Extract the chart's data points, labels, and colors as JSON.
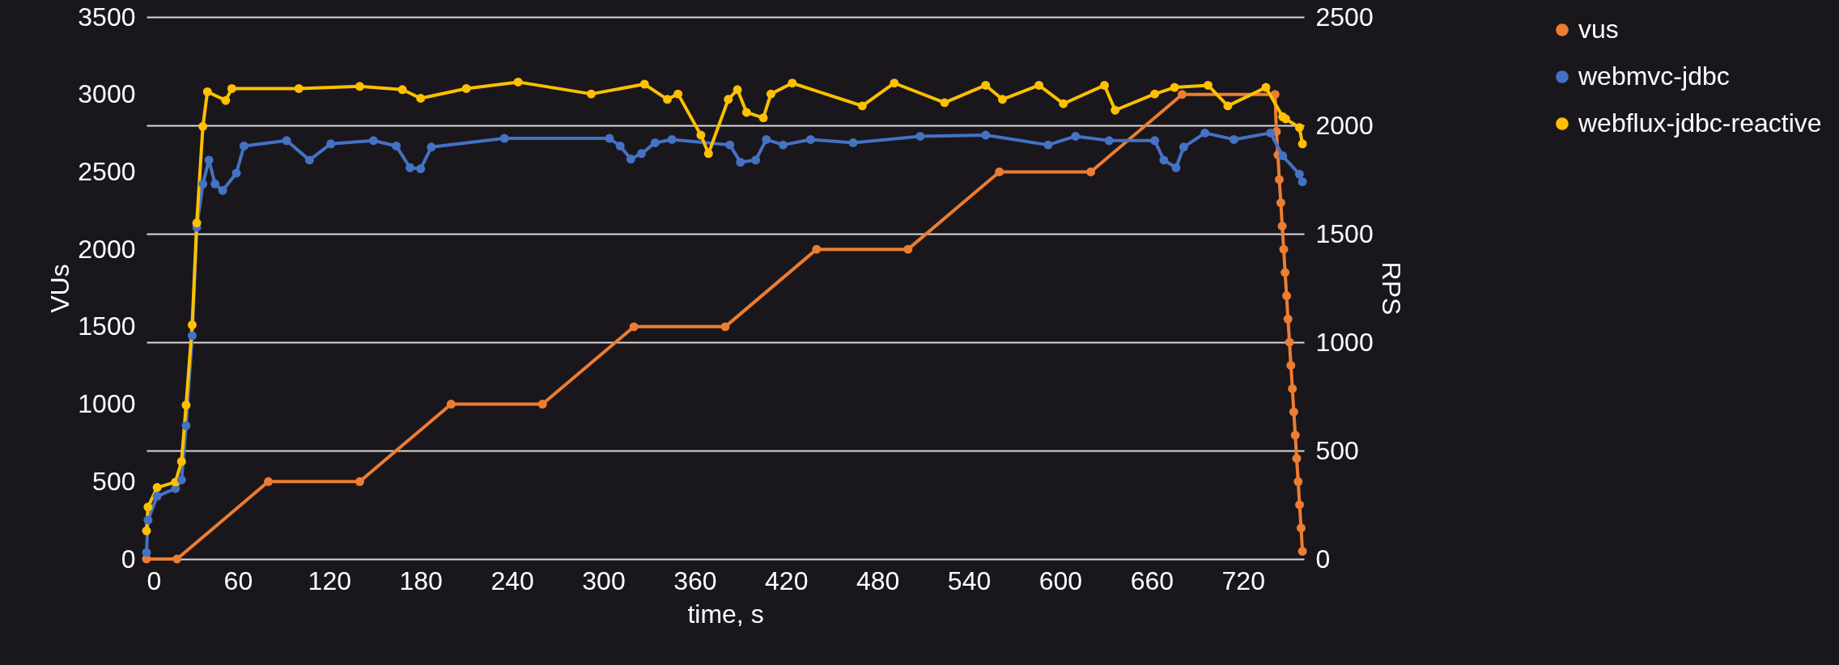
{
  "chart_data": {
    "type": "line",
    "xlabel": "time, s",
    "ylabel": "VUs",
    "y2label": "RPS",
    "xlim": [
      0,
      760
    ],
    "xticks": [
      0,
      60,
      120,
      180,
      240,
      300,
      360,
      420,
      480,
      540,
      600,
      660,
      720
    ],
    "ylim": [
      0,
      3500
    ],
    "yticks": [
      0,
      500,
      1000,
      1500,
      2000,
      2500,
      3000,
      3500
    ],
    "y2lim": [
      0,
      2500
    ],
    "y2ticks": [
      0,
      500,
      1000,
      1500,
      2000,
      2500
    ],
    "grid": "y2",
    "legend": "right",
    "marker": "circle",
    "series": [
      {
        "name": "vus",
        "color": "#ed7d31",
        "axis": "y",
        "x": [
          0,
          20,
          80,
          140,
          200,
          260,
          320,
          380,
          440,
          500,
          560,
          620,
          680,
          741,
          741.9,
          742.9,
          743.8,
          744.8,
          745.7,
          746.7,
          747.6,
          748.6,
          749.5,
          750.5,
          751.4,
          752.4,
          753.3,
          754.3,
          755.2,
          756.2,
          757.1,
          758.1,
          759
        ],
        "values": [
          0,
          0,
          500,
          500,
          1000,
          1000,
          1500,
          1500,
          2000,
          2000,
          2500,
          2500,
          3000,
          3000,
          2760,
          2610,
          2450,
          2300,
          2150,
          2000,
          1850,
          1700,
          1550,
          1400,
          1250,
          1100,
          950,
          800,
          650,
          500,
          350,
          200,
          50
        ]
      },
      {
        "name": "webmvc-jdbc",
        "color": "#4472c4",
        "axis": "y2",
        "x": [
          0,
          1,
          7,
          19,
          23,
          26,
          30,
          33,
          37,
          41,
          45,
          50,
          59,
          64,
          92,
          107,
          121,
          149,
          164,
          173,
          180,
          187,
          235,
          304,
          311,
          318,
          325,
          334,
          345,
          383,
          390,
          400,
          407,
          418,
          436,
          464,
          508,
          551,
          592,
          610,
          632,
          662,
          668,
          676,
          681,
          695,
          714,
          738,
          746,
          757,
          759
        ],
        "values": [
          30,
          180,
          290,
          325,
          365,
          615,
          1030,
          1530,
          1730,
          1840,
          1730,
          1700,
          1780,
          1905,
          1930,
          1840,
          1915,
          1930,
          1905,
          1805,
          1800,
          1900,
          1940,
          1940,
          1905,
          1845,
          1870,
          1920,
          1935,
          1910,
          1830,
          1840,
          1935,
          1910,
          1935,
          1920,
          1950,
          1955,
          1910,
          1950,
          1930,
          1930,
          1840,
          1805,
          1900,
          1965,
          1935,
          1965,
          1860,
          1775,
          1740
        ]
      },
      {
        "name": "webflux-jdbc-reactive",
        "color": "#ffc000",
        "axis": "y2",
        "x": [
          0,
          1,
          7,
          19,
          23,
          26,
          30,
          33,
          37,
          40,
          52,
          56,
          100,
          140,
          168,
          180,
          210,
          244,
          292,
          327,
          342,
          349,
          364,
          369,
          382,
          388,
          394,
          405,
          410,
          424,
          470,
          491,
          524,
          551,
          562,
          586,
          602,
          629,
          636,
          662,
          675,
          697,
          710,
          735,
          746,
          748,
          757,
          759
        ],
        "values": [
          130,
          240,
          330,
          355,
          450,
          710,
          1080,
          1550,
          1995,
          2155,
          2115,
          2170,
          2170,
          2180,
          2165,
          2125,
          2170,
          2200,
          2145,
          2190,
          2120,
          2145,
          1955,
          1870,
          2120,
          2165,
          2060,
          2035,
          2145,
          2195,
          2090,
          2195,
          2105,
          2185,
          2120,
          2185,
          2100,
          2185,
          2070,
          2145,
          2175,
          2185,
          2090,
          2175,
          2040,
          2030,
          1990,
          1915
        ]
      }
    ]
  }
}
